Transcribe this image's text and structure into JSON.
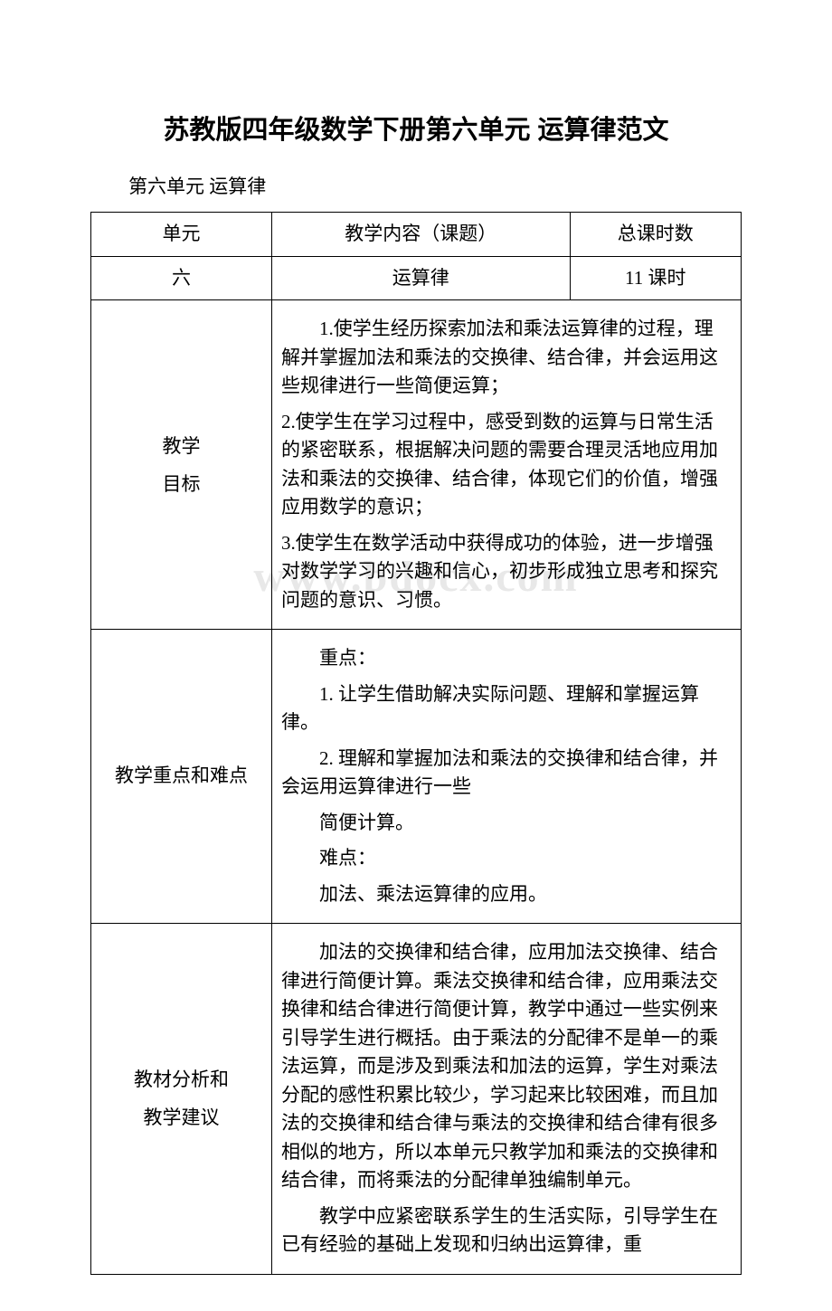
{
  "watermark": "www.bdocx.com",
  "title": "苏教版四年级数学下册第六单元 运算律范文",
  "subtitle": "第六单元 运算律",
  "header": {
    "col1": "单元",
    "col2": "教学内容（课题）",
    "col3": "总课时数"
  },
  "row1": {
    "unit": "六",
    "content": "运算律",
    "hours": "11 课时"
  },
  "goals": {
    "label_line1": "教学",
    "label_line2": "目标",
    "p1": "1.使学生经历探索加法和乘法运算律的过程，理解并掌握加法和乘法的交换律、结合律，并会运用这些规律进行一些简便运算；",
    "p2": "2.使学生在学习过程中，感受到数的运算与日常生活的紧密联系，根据解决问题的需要合理灵活地应用加法和乘法的交换律、结合律，体现它们的价值，增强应用数学的意识；",
    "p3": "3.使学生在数学活动中获得成功的体验，进一步增强对数学学习的兴趣和信心，初步形成独立思考和探究问题的意识、习惯。"
  },
  "keypoints": {
    "label": "教学重点和难点",
    "p1": "重点：",
    "p2": "1. 让学生借助解决实际问题、理解和掌握运算律。",
    "p3": "2. 理解和掌握加法和乘法的交换律和结合律，并会运用运算律进行一些",
    "p4": "简便计算。",
    "p5": "难点：",
    "p6": "加法、乘法运算律的应用。"
  },
  "analysis": {
    "label_line1": "教材分析和",
    "label_line2": "教学建议",
    "p1": "加法的交换律和结合律，应用加法交换律、结合律进行简便计算。乘法交换律和结合律，应用乘法交换律和结合律进行简便计算，教学中通过一些实例来引导学生进行概括。由于乘法的分配律不是单一的乘法运算，而是涉及到乘法和加法的运算，学生对乘法分配的感性积累比较少，学习起来比较困难，而且加法的交换律和结合律与乘法的交换律和结合律有很多相似的地方，所以本单元只教学加和乘法的交换律和结合律，而将乘法的分配律单独编制单元。",
    "p2": "教学中应紧密联系学生的生活实际，引导学生在已有经验的基础上发现和归纳出运算律，重"
  },
  "colors": {
    "text": "#000000",
    "border": "#000000",
    "background": "#ffffff",
    "watermark": "#e8e8e8"
  },
  "typography": {
    "title_fontsize": 29,
    "body_fontsize": 21,
    "title_family": "SimHei",
    "body_family": "SimSun"
  },
  "table_layout": {
    "label_col_width": 200,
    "cols_row1": 3,
    "cols_rest": 2
  }
}
